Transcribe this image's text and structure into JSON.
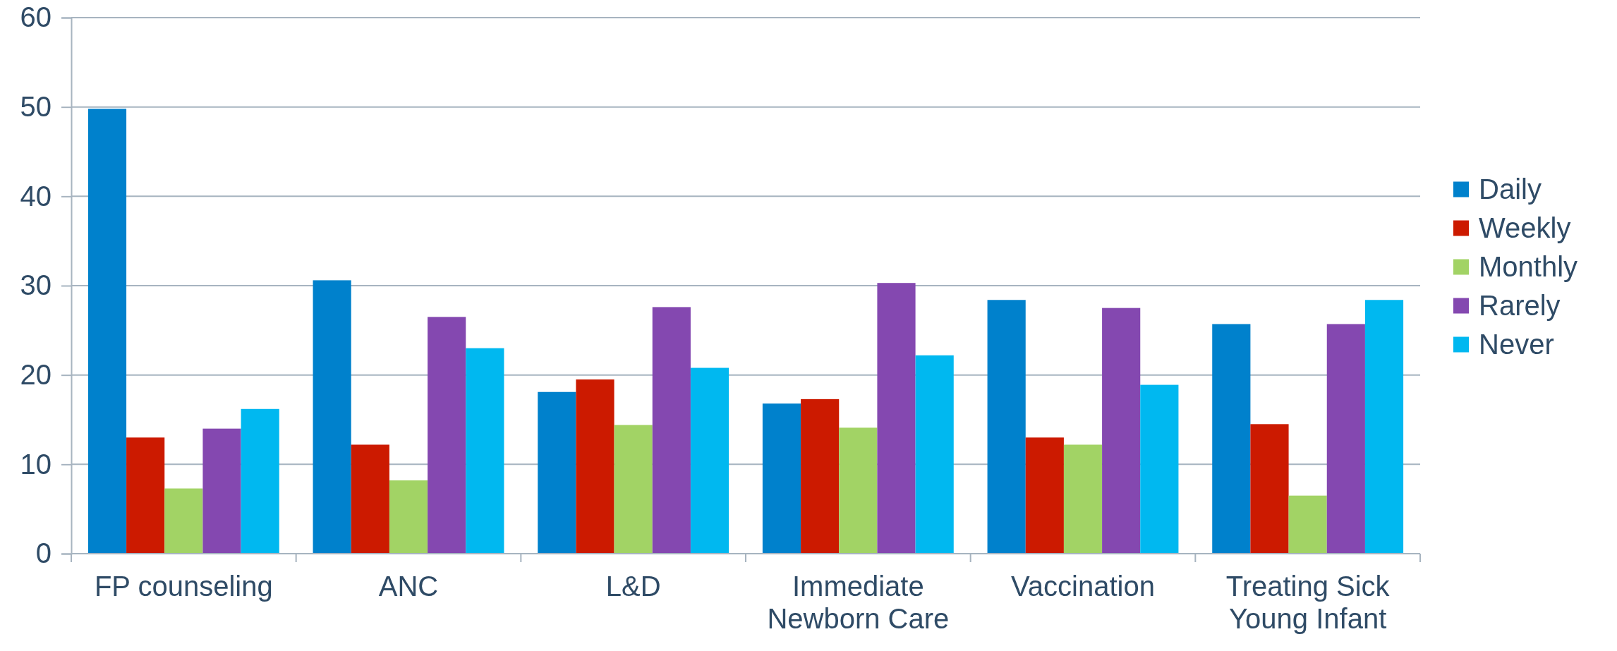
{
  "chart_data": {
    "type": "bar",
    "categories": [
      "FP counseling",
      "ANC",
      "L&D",
      "Immediate Newborn Care",
      "Vaccination",
      "Treating Sick Young Infant"
    ],
    "series": [
      {
        "name": "Daily",
        "color": "#0081cc",
        "values": [
          49.8,
          30.6,
          18.1,
          16.8,
          28.4,
          25.7
        ]
      },
      {
        "name": "Weekly",
        "color": "#cc1a00",
        "values": [
          13.0,
          12.2,
          19.5,
          17.3,
          13.0,
          14.5
        ]
      },
      {
        "name": "Monthly",
        "color": "#a2d365",
        "values": [
          7.3,
          8.2,
          14.4,
          14.1,
          12.2,
          6.5
        ]
      },
      {
        "name": "Rarely",
        "color": "#8448b0",
        "values": [
          14.0,
          26.5,
          27.6,
          30.3,
          27.5,
          25.7
        ]
      },
      {
        "name": "Never",
        "color": "#00b8f0",
        "values": [
          16.2,
          23.0,
          20.8,
          22.2,
          18.9,
          28.4
        ]
      }
    ],
    "ylim": [
      0,
      60
    ],
    "yticks": [
      0,
      10,
      20,
      30,
      40,
      50,
      60
    ],
    "grid": "y",
    "legend": "right"
  }
}
